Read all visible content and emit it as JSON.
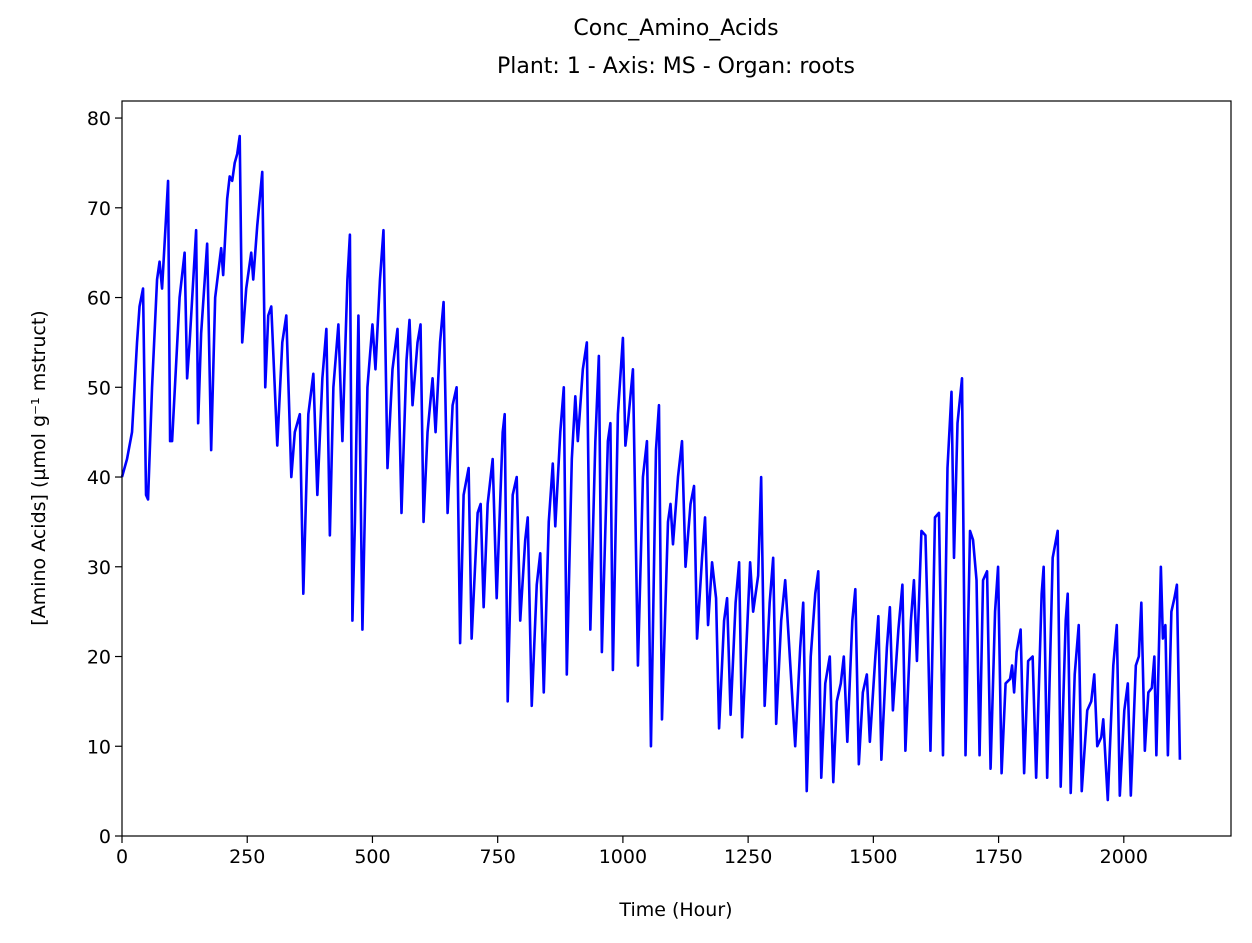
{
  "chart_data": {
    "type": "line",
    "title": "Conc_Amino_Acids",
    "subtitle": "Plant: 1 - Axis: MS - Organ: roots",
    "x_label": "Time (Hour)",
    "y_label": "[Amino Acids] (µmol g⁻¹ mstruct)",
    "color": "#0000ff",
    "xlim": [
      0,
      2214
    ],
    "ylim": [
      0,
      81.9
    ],
    "xticks": [
      0,
      250,
      500,
      750,
      1000,
      1250,
      1500,
      1750,
      2000
    ],
    "yticks": [
      0,
      10,
      20,
      30,
      40,
      50,
      60,
      70,
      80
    ],
    "x": [
      0,
      10,
      20,
      30,
      35,
      42,
      48,
      52,
      60,
      70,
      75,
      80,
      92,
      96,
      100,
      115,
      125,
      130,
      135,
      148,
      152,
      158,
      170,
      178,
      186,
      198,
      202,
      210,
      215,
      220,
      225,
      230,
      235,
      240,
      248,
      258,
      262,
      270,
      280,
      286,
      292,
      298,
      310,
      320,
      328,
      338,
      345,
      355,
      362,
      372,
      382,
      390,
      400,
      408,
      415,
      422,
      432,
      440,
      450,
      455,
      460,
      465,
      472,
      480,
      490,
      500,
      506,
      515,
      522,
      530,
      540,
      550,
      558,
      568,
      574,
      580,
      590,
      596,
      602,
      610,
      620,
      626,
      635,
      642,
      650,
      660,
      668,
      675,
      682,
      692,
      698,
      710,
      716,
      722,
      730,
      740,
      748,
      760,
      764,
      770,
      780,
      788,
      795,
      805,
      810,
      818,
      828,
      835,
      842,
      852,
      860,
      865,
      875,
      882,
      888,
      898,
      905,
      910,
      920,
      928,
      935,
      945,
      952,
      958,
      970,
      975,
      980,
      990,
      1000,
      1005,
      1010,
      1020,
      1030,
      1040,
      1048,
      1056,
      1066,
      1072,
      1078,
      1090,
      1095,
      1100,
      1110,
      1118,
      1125,
      1135,
      1142,
      1148,
      1158,
      1164,
      1170,
      1178,
      1186,
      1192,
      1202,
      1208,
      1215,
      1225,
      1232,
      1238,
      1248,
      1254,
      1260,
      1270,
      1276,
      1283,
      1293,
      1300,
      1306,
      1316,
      1324,
      1344,
      1354,
      1360,
      1367,
      1375,
      1384,
      1390,
      1396,
      1404,
      1413,
      1420,
      1427,
      1435,
      1441,
      1448,
      1458,
      1464,
      1471,
      1479,
      1487,
      1493,
      1504,
      1510,
      1516,
      1527,
      1533,
      1539,
      1550,
      1558,
      1564,
      1575,
      1581,
      1587,
      1596,
      1604,
      1608,
      1614,
      1623,
      1631,
      1639,
      1648,
      1656,
      1661,
      1668,
      1677,
      1684,
      1693,
      1699,
      1706,
      1712,
      1719,
      1727,
      1734,
      1743,
      1749,
      1756,
      1764,
      1773,
      1777,
      1781,
      1786,
      1794,
      1801,
      1809,
      1818,
      1825,
      1836,
      1840,
      1847,
      1858,
      1868,
      1874,
      1884,
      1888,
      1894,
      1902,
      1910,
      1916,
      1927,
      1935,
      1941,
      1947,
      1955,
      1959,
      1968,
      1979,
      1986,
      1992,
      2001,
      2008,
      2014,
      2024,
      2030,
      2035,
      2042,
      2049,
      2056,
      2061,
      2065,
      2074,
      2078,
      2083,
      2088,
      2095,
      2101,
      2106,
      2112
    ],
    "values": [
      40,
      42,
      45,
      55,
      59,
      61,
      38,
      37.5,
      50,
      62,
      64,
      61,
      73,
      44,
      44,
      60,
      65,
      51,
      55,
      67.5,
      46,
      56,
      66,
      43,
      60,
      65.5,
      62.5,
      71,
      73.5,
      73,
      75,
      76,
      78,
      55,
      61,
      65,
      62,
      68,
      74,
      50,
      58,
      59,
      43.5,
      55,
      58,
      40,
      45,
      47,
      27,
      47,
      51.5,
      38,
      51,
      56.5,
      33.5,
      50,
      57,
      44,
      62,
      67,
      24,
      35,
      58,
      23,
      50,
      57,
      52,
      62,
      67.5,
      41,
      52,
      56.5,
      36,
      53,
      57.5,
      48,
      55,
      57,
      35,
      45,
      51,
      45,
      55,
      59.5,
      36,
      48,
      50,
      21.5,
      38,
      41,
      22,
      36,
      37,
      25.5,
      37,
      42,
      26.5,
      45,
      47,
      15,
      38,
      40,
      24,
      33,
      35.5,
      14.5,
      28,
      31.5,
      16,
      35,
      41.5,
      34.5,
      45,
      50,
      18,
      42,
      49,
      44,
      52,
      55,
      23,
      44,
      53.5,
      20.5,
      44,
      46,
      18.5,
      47,
      55.5,
      43.5,
      46,
      52,
      19,
      40,
      44,
      10,
      43,
      48,
      13,
      35,
      37,
      32.5,
      40,
      44,
      30,
      37,
      39,
      22,
      31,
      35.5,
      23.5,
      30.5,
      26.5,
      12,
      24,
      26.5,
      13.5,
      26,
      30.5,
      11,
      23,
      30.5,
      25,
      29,
      40,
      14.5,
      26,
      31,
      12.5,
      24,
      28.5,
      10,
      21,
      26,
      5,
      20,
      27,
      29.5,
      6.5,
      17,
      20,
      6,
      15,
      17,
      20,
      10.5,
      24,
      27.5,
      8,
      16,
      18,
      10.5,
      20,
      24.5,
      8.5,
      21,
      25.5,
      14,
      23,
      28,
      9.5,
      24,
      28.5,
      19.5,
      34,
      33.5,
      25,
      9.5,
      35.5,
      36,
      9,
      41,
      49.5,
      31,
      46,
      51,
      9,
      34,
      33,
      28.5,
      9,
      28.5,
      29.5,
      7.5,
      25,
      30,
      7,
      17,
      17.5,
      19,
      16,
      20.5,
      23,
      7,
      19.5,
      20,
      6.5,
      27,
      30,
      6.5,
      31,
      34,
      5.5,
      24,
      27,
      4.8,
      18,
      23.5,
      5,
      14,
      15,
      18,
      10,
      11,
      13,
      4,
      19,
      23.5,
      4.5,
      14,
      17,
      4.5,
      19,
      20,
      26,
      9.5,
      16,
      16.5,
      20,
      9,
      30,
      22,
      23.5,
      9,
      25,
      26.5,
      28,
      8.5
    ]
  }
}
